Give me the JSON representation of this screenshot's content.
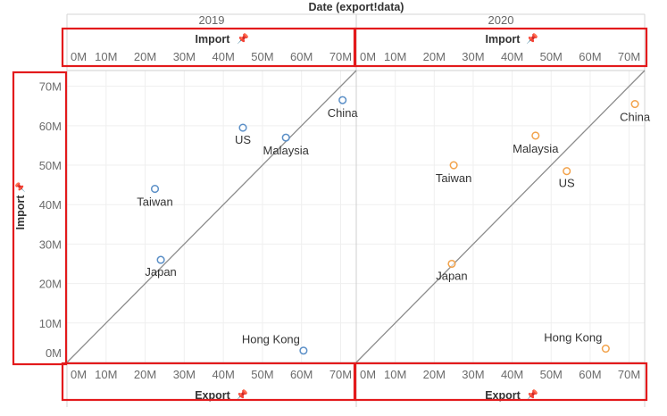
{
  "chart_data": {
    "type": "scatter",
    "title": "Date (export!data)",
    "xlabel": "Export",
    "ylabel": "Import",
    "xlim": [
      0,
      74
    ],
    "ylim": [
      0,
      74
    ],
    "unit": "M",
    "ticks": [
      "0M",
      "10M",
      "20M",
      "30M",
      "40M",
      "50M",
      "60M",
      "70M"
    ],
    "tick_values": [
      0,
      10,
      20,
      30,
      40,
      50,
      60,
      70
    ],
    "top_axis_title": "Import",
    "pin_icon": "pin-icon",
    "reference_line": "y = x",
    "highlight_color": "#e31a1c",
    "panels": [
      {
        "year": "2019",
        "color": "#5b8fc7",
        "points": [
          {
            "label": "US",
            "x": 45,
            "y": 59.5
          },
          {
            "label": "Malaysia",
            "x": 56,
            "y": 57
          },
          {
            "label": "China",
            "x": 70.5,
            "y": 66.5
          },
          {
            "label": "Taiwan",
            "x": 22.5,
            "y": 44
          },
          {
            "label": "Japan",
            "x": 24,
            "y": 26
          },
          {
            "label": "Hong Kong",
            "x": 60.5,
            "y": 3
          }
        ]
      },
      {
        "year": "2020",
        "color": "#f2a24a",
        "points": [
          {
            "label": "Malaysia",
            "x": 46,
            "y": 57.5
          },
          {
            "label": "China",
            "x": 71.5,
            "y": 65.5
          },
          {
            "label": "Taiwan",
            "x": 25,
            "y": 50
          },
          {
            "label": "US",
            "x": 54,
            "y": 48.5
          },
          {
            "label": "Japan",
            "x": 24.5,
            "y": 25
          },
          {
            "label": "Hong Kong",
            "x": 64,
            "y": 3.5
          }
        ]
      }
    ]
  }
}
